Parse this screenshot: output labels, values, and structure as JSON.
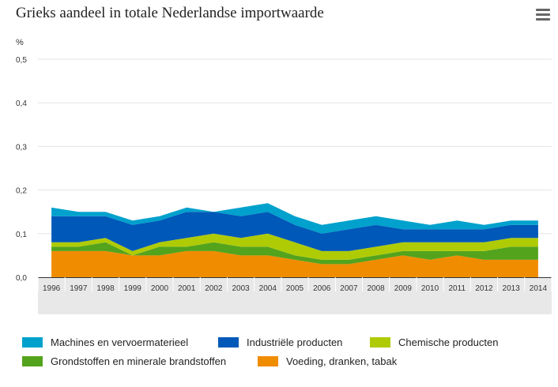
{
  "title": "Grieks aandeel in totale Nederlandse importwaarde",
  "menu_icon": "hamburger-menu-icon",
  "chart_data": {
    "type": "area",
    "stacked": true,
    "title": "Grieks aandeel in totale Nederlandse importwaarde",
    "ylabel": "%",
    "xlabel": "",
    "ylim": [
      0,
      0.5
    ],
    "yticks": [
      "0,0",
      "0,1",
      "0,2",
      "0,3",
      "0,4",
      "0,5"
    ],
    "grid": true,
    "legend_position": "bottom",
    "categories": [
      "1996",
      "1997",
      "1998",
      "1999",
      "2000",
      "2001",
      "2002",
      "2003",
      "2004",
      "2005",
      "2006",
      "2007",
      "2008",
      "2009",
      "2010",
      "2011",
      "2012",
      "2013",
      "2014"
    ],
    "series": [
      {
        "name": "Voeding, dranken, tabak",
        "color": "#f08c00",
        "values": [
          0.06,
          0.06,
          0.06,
          0.05,
          0.05,
          0.06,
          0.06,
          0.05,
          0.05,
          0.04,
          0.03,
          0.03,
          0.04,
          0.05,
          0.04,
          0.05,
          0.04,
          0.04,
          0.04
        ]
      },
      {
        "name": "Grondstoffen en minerale brandstoffen",
        "color": "#53a31d",
        "values": [
          0.01,
          0.01,
          0.02,
          0.0,
          0.02,
          0.01,
          0.02,
          0.02,
          0.02,
          0.01,
          0.01,
          0.01,
          0.01,
          0.01,
          0.02,
          0.01,
          0.02,
          0.03,
          0.03
        ]
      },
      {
        "name": "Chemische producten",
        "color": "#afcb05",
        "values": [
          0.01,
          0.01,
          0.01,
          0.01,
          0.01,
          0.02,
          0.02,
          0.02,
          0.03,
          0.03,
          0.02,
          0.02,
          0.02,
          0.02,
          0.02,
          0.02,
          0.02,
          0.02,
          0.02
        ]
      },
      {
        "name": "Industriële producten",
        "color": "#0058b8",
        "values": [
          0.06,
          0.06,
          0.05,
          0.06,
          0.05,
          0.06,
          0.05,
          0.05,
          0.05,
          0.04,
          0.04,
          0.05,
          0.05,
          0.03,
          0.03,
          0.03,
          0.03,
          0.03,
          0.03
        ]
      },
      {
        "name": "Machines en vervoermaterieel",
        "color": "#00a1cd",
        "values": [
          0.02,
          0.01,
          0.01,
          0.01,
          0.01,
          0.01,
          0.0,
          0.02,
          0.02,
          0.02,
          0.02,
          0.02,
          0.02,
          0.02,
          0.01,
          0.02,
          0.01,
          0.01,
          0.01
        ]
      }
    ]
  },
  "legend": [
    {
      "name": "Machines en vervoermaterieel",
      "color": "#00a1cd"
    },
    {
      "name": "Industriële producten",
      "color": "#0058b8"
    },
    {
      "name": "Chemische producten",
      "color": "#afcb05"
    },
    {
      "name": "Grondstoffen en minerale brandstoffen",
      "color": "#53a31d"
    },
    {
      "name": "Voeding, dranken, tabak",
      "color": "#f08c00"
    }
  ]
}
